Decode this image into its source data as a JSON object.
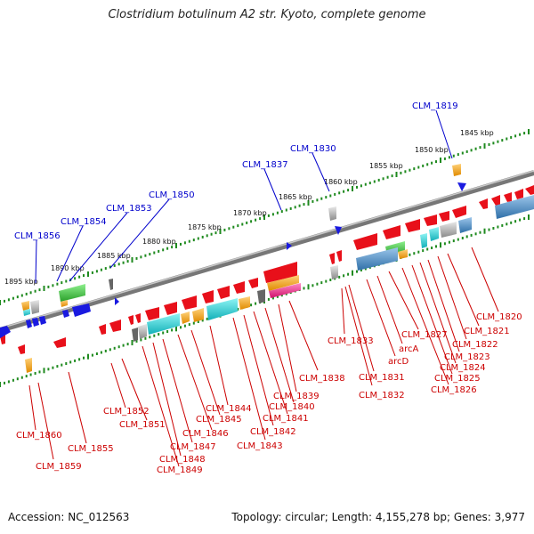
{
  "title": "Clostridium botulinum A2 str. Kyoto, complete genome",
  "footer": {
    "accession": "Accession: NC_012563",
    "summary": "Topology: circular; Length: 4,155,278 bp; Genes: 3,977"
  },
  "colors": {
    "backbone": "#7a7a7a",
    "scale_dots": "#1f8a1f",
    "label_top": "#0000cc",
    "label_bottom": "#cc0000",
    "gene_red": "#e8101a",
    "gene_blue": "#1a1ae0",
    "orange": "#f0a020",
    "green": "#44c044",
    "cyan": "#1ecfd0",
    "steel": "#4d8fc5",
    "magenta": "#f0208c",
    "gray": "#9a9a9a"
  },
  "kbp_ticks": [
    "1845 kbp",
    "1850 kbp",
    "1855 kbp",
    "1860 kbp",
    "1865 kbp",
    "1870 kbp",
    "1875 kbp",
    "1880 kbp",
    "1885 kbp",
    "1890 kbp",
    "1895 kbp"
  ],
  "top_labels": [
    "CLM_1819",
    "CLM_1830",
    "CLM_1837",
    "CLM_1850",
    "CLM_1853",
    "CLM_1854",
    "CLM_1856"
  ],
  "bottom_labels": [
    "CLM_1820",
    "CLM_1821",
    "CLM_1822",
    "CLM_1823",
    "CLM_1824",
    "CLM_1825",
    "CLM_1826",
    "CLM_1827",
    "arcA",
    "arcD",
    "CLM_1831",
    "CLM_1832",
    "CLM_1833",
    "CLM_1838",
    "CLM_1839",
    "CLM_1840",
    "CLM_1841",
    "CLM_1842",
    "CLM_1843",
    "CLM_1844",
    "CLM_1845",
    "CLM_1846",
    "CLM_1847",
    "CLM_1848",
    "CLM_1849",
    "CLM_1851",
    "CLM_1852",
    "CLM_1855",
    "CLM_1859",
    "CLM_1860"
  ]
}
